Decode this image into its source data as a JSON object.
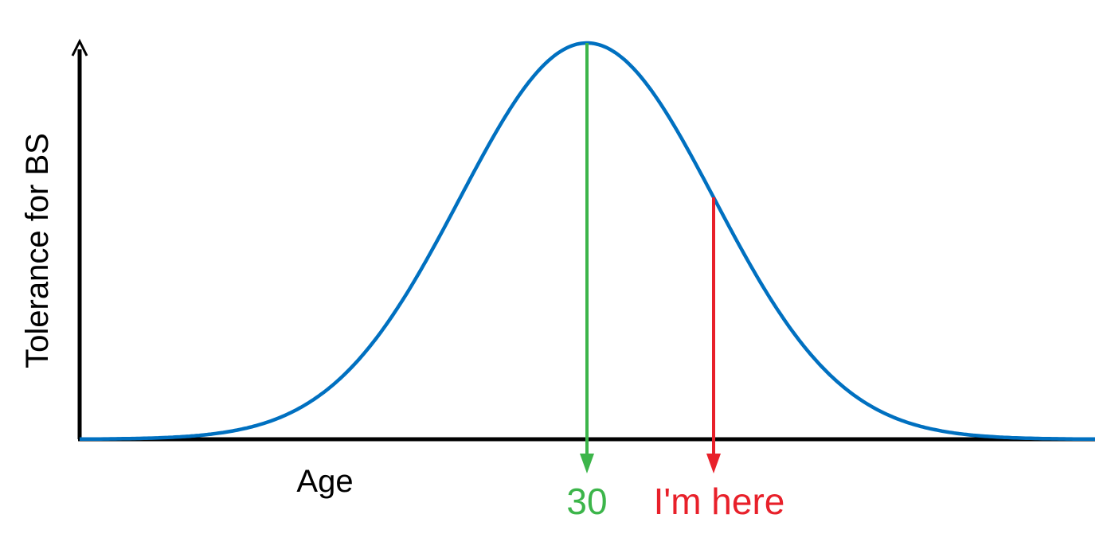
{
  "chart_data": {
    "type": "line",
    "title": "",
    "xlabel": "Age",
    "ylabel": "Tolerance for BS",
    "grid": false,
    "legend": "none",
    "series": [
      {
        "curve": "bell",
        "color": "#0070C0",
        "peak_x": 30
      }
    ],
    "annotations": [
      {
        "label": "30",
        "color": "#3CB54A",
        "position": "peak"
      },
      {
        "label": "I'm here",
        "color": "#E8202A",
        "position": "right-of-peak"
      }
    ]
  }
}
